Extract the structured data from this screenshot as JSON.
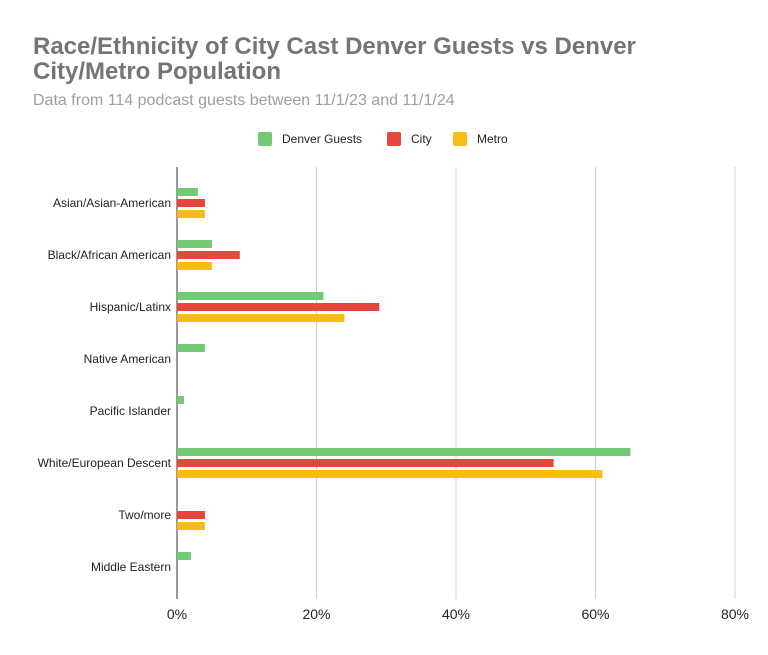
{
  "title": "Race/Ethnicity of City Cast Denver Guests vs Denver City/Metro Population",
  "subtitle": "Data from 114 podcast guests between 11/1/23 and 11/1/24",
  "chart_data": {
    "type": "bar",
    "orientation": "horizontal",
    "title": "Race/Ethnicity of City Cast Denver Guests vs Denver City/Metro Population",
    "subtitle": "Data from 114 podcast guests between 11/1/23 and 11/1/24",
    "categories": [
      "Asian/Asian-American",
      "Black/African American",
      "Hispanic/Latinx",
      "Native American",
      "Pacific Islander",
      "White/European Descent",
      "Two/more",
      "Middle Eastern"
    ],
    "series": [
      {
        "name": "Denver Guests",
        "color": "#74c977",
        "values": [
          3,
          5,
          21,
          4,
          1,
          65,
          0,
          2
        ]
      },
      {
        "name": "City",
        "color": "#e8453c",
        "values": [
          4,
          9,
          29,
          0,
          0,
          54,
          4,
          0
        ]
      },
      {
        "name": "Metro",
        "color": "#f7bd12",
        "values": [
          4,
          5,
          24,
          0,
          0,
          61,
          4,
          0
        ]
      }
    ],
    "xlim": [
      0,
      80
    ],
    "xticks": [
      "0%",
      "20%",
      "40%",
      "60%",
      "80%"
    ],
    "xtick_values": [
      0,
      20,
      40,
      60,
      80
    ],
    "grid": "vertical",
    "legend": "top-center"
  }
}
